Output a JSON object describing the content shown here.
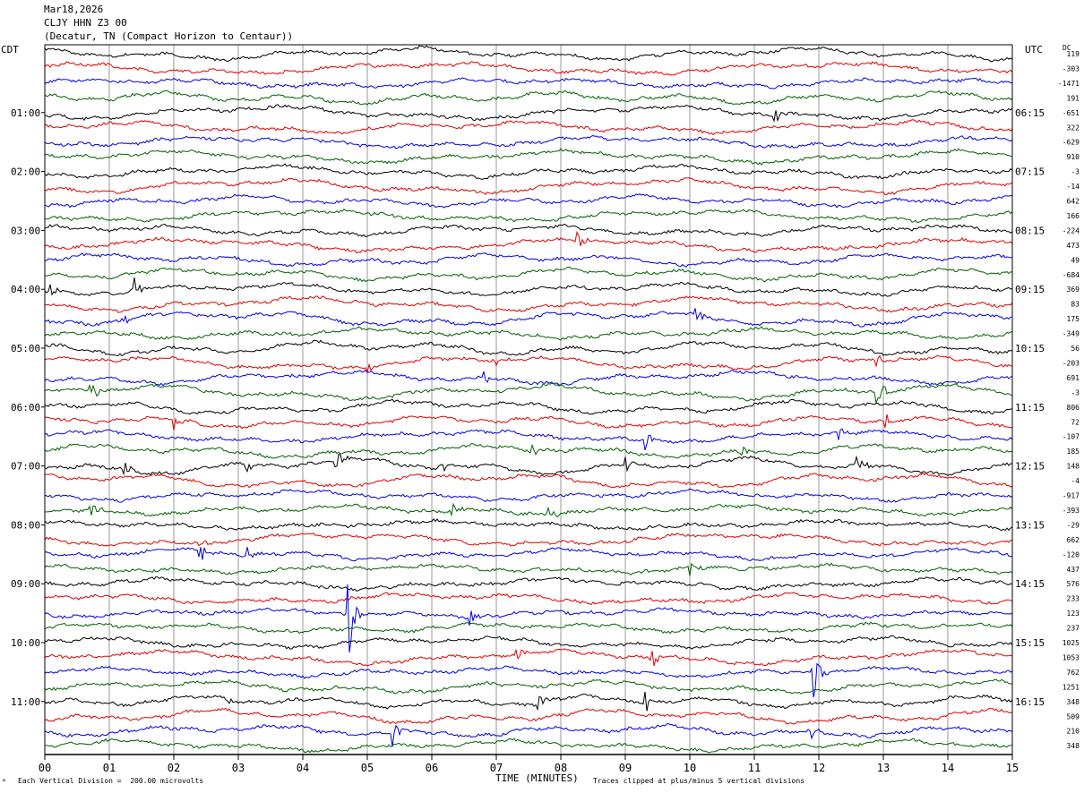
{
  "header": {
    "date": "Mar18,2026",
    "station": "CLJY HHN Z3 00",
    "location": "(Decatur, TN (Compact Horizon to Centaur))"
  },
  "chart_data": {
    "type": "line",
    "subtype": "helicorder",
    "left_axis_title": "CDT",
    "right_axis_title": "UTC",
    "dc_title": "DC",
    "xlabel": "TIME (MINUTES)",
    "xlim": [
      0,
      15
    ],
    "x_ticks": [
      "00",
      "01",
      "02",
      "03",
      "04",
      "05",
      "06",
      "07",
      "08",
      "09",
      "10",
      "11",
      "12",
      "13",
      "14",
      "15"
    ],
    "trace_count": 60,
    "trace_colors": [
      "#000000",
      "#e00000",
      "#0000e0",
      "#006000"
    ],
    "left_time_labels": [
      {
        "trace": 4,
        "text": "01:00"
      },
      {
        "trace": 8,
        "text": "02:00"
      },
      {
        "trace": 12,
        "text": "03:00"
      },
      {
        "trace": 16,
        "text": "04:00"
      },
      {
        "trace": 20,
        "text": "05:00"
      },
      {
        "trace": 24,
        "text": "06:00"
      },
      {
        "trace": 28,
        "text": "07:00"
      },
      {
        "trace": 32,
        "text": "08:00"
      },
      {
        "trace": 36,
        "text": "09:00"
      },
      {
        "trace": 40,
        "text": "10:00"
      },
      {
        "trace": 44,
        "text": "11:00"
      }
    ],
    "right_time_labels": [
      {
        "trace": 4,
        "text": "06:15"
      },
      {
        "trace": 8,
        "text": "07:15"
      },
      {
        "trace": 12,
        "text": "08:15"
      },
      {
        "trace": 16,
        "text": "09:15"
      },
      {
        "trace": 20,
        "text": "10:15"
      },
      {
        "trace": 24,
        "text": "11:15"
      },
      {
        "trace": 28,
        "text": "12:15"
      },
      {
        "trace": 32,
        "text": "13:15"
      },
      {
        "trace": 36,
        "text": "14:15"
      },
      {
        "trace": 40,
        "text": "15:15"
      },
      {
        "trace": 44,
        "text": "16:15"
      }
    ],
    "dc_offsets": [
      "119",
      "-303",
      "-1471",
      "191",
      "-651",
      "322",
      "-629",
      "910",
      "-3",
      "-14",
      "642",
      "166",
      "-224",
      "473",
      "49",
      "-684",
      "369",
      "83",
      "175",
      "-349",
      "56",
      "-203",
      "691",
      "-3",
      "806",
      "72",
      "-107",
      "185",
      "148",
      "-4",
      "-917",
      "-393",
      "-29",
      "662",
      "-120",
      "437",
      "576",
      "233",
      "123",
      "237",
      "1025",
      "1053",
      "762",
      "1251",
      "348",
      "509",
      "210",
      "348"
    ],
    "events": [
      {
        "trace": 4,
        "minute": 11.3,
        "amp": 0.7
      },
      {
        "trace": 13,
        "minute": 8.25,
        "amp": 0.8
      },
      {
        "trace": 16,
        "minute": 0.1,
        "amp": 0.8
      },
      {
        "trace": 16,
        "minute": 1.4,
        "amp": 0.9
      },
      {
        "trace": 18,
        "minute": 1.2,
        "amp": 0.7
      },
      {
        "trace": 18,
        "minute": 10.1,
        "amp": 0.8
      },
      {
        "trace": 21,
        "minute": 5.0,
        "amp": 0.5
      },
      {
        "trace": 21,
        "minute": 7.0,
        "amp": 0.5
      },
      {
        "trace": 21,
        "minute": 12.9,
        "amp": 0.6
      },
      {
        "trace": 22,
        "minute": 6.8,
        "amp": 0.6
      },
      {
        "trace": 23,
        "minute": 0.7,
        "amp": 1.0
      },
      {
        "trace": 23,
        "minute": 12.9,
        "amp": 1.6
      },
      {
        "trace": 25,
        "minute": 2.0,
        "amp": 0.8
      },
      {
        "trace": 25,
        "minute": 13.0,
        "amp": 0.9
      },
      {
        "trace": 26,
        "minute": 9.3,
        "amp": 0.9
      },
      {
        "trace": 26,
        "minute": 12.3,
        "amp": 0.8
      },
      {
        "trace": 27,
        "minute": 7.5,
        "amp": 0.8
      },
      {
        "trace": 27,
        "minute": 10.8,
        "amp": 0.8
      },
      {
        "trace": 28,
        "minute": 1.2,
        "amp": 0.9
      },
      {
        "trace": 28,
        "minute": 3.1,
        "amp": 0.9
      },
      {
        "trace": 28,
        "minute": 4.5,
        "amp": 1.0
      },
      {
        "trace": 28,
        "minute": 6.1,
        "amp": 0.8
      },
      {
        "trace": 28,
        "minute": 9.0,
        "amp": 0.8
      },
      {
        "trace": 28,
        "minute": 12.6,
        "amp": 0.8
      },
      {
        "trace": 31,
        "minute": 0.7,
        "amp": 0.8
      },
      {
        "trace": 31,
        "minute": 6.3,
        "amp": 0.8
      },
      {
        "trace": 31,
        "minute": 7.8,
        "amp": 0.7
      },
      {
        "trace": 33,
        "minute": 2.4,
        "amp": 0.8
      },
      {
        "trace": 34,
        "minute": 3.1,
        "amp": 1.0
      },
      {
        "trace": 34,
        "minute": 2.4,
        "amp": 0.9
      },
      {
        "trace": 35,
        "minute": 10.0,
        "amp": 1.0
      },
      {
        "trace": 38,
        "minute": 4.7,
        "amp": 3.8
      },
      {
        "trace": 38,
        "minute": 6.6,
        "amp": 0.8
      },
      {
        "trace": 41,
        "minute": 9.4,
        "amp": 1.6
      },
      {
        "trace": 41,
        "minute": 7.3,
        "amp": 0.7
      },
      {
        "trace": 42,
        "minute": 11.9,
        "amp": 2.5
      },
      {
        "trace": 44,
        "minute": 9.3,
        "amp": 1.1
      },
      {
        "trace": 44,
        "minute": 7.6,
        "amp": 1.0
      },
      {
        "trace": 44,
        "minute": 2.8,
        "amp": 0.7
      },
      {
        "trace": 46,
        "minute": 5.4,
        "amp": 1.5
      },
      {
        "trace": 46,
        "minute": 11.9,
        "amp": 0.6
      }
    ]
  },
  "footer": {
    "scale_note": "Each Vertical Division =  200.00 microvolts",
    "clip_note": "Traces clipped at plus/minus 5 vertical divisions",
    "corner_mark": "ᴹ"
  }
}
